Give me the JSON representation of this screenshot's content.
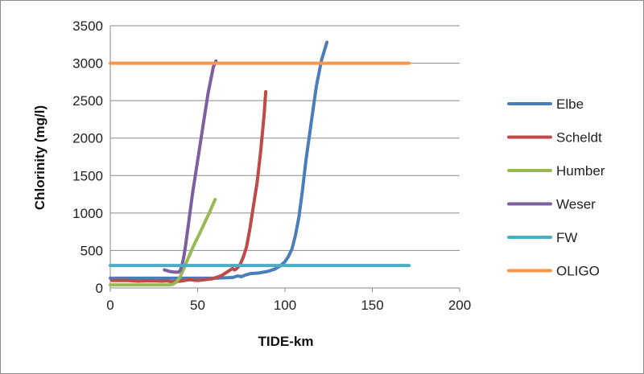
{
  "chart_data": {
    "type": "line",
    "title": "",
    "xlabel": "TIDE-km",
    "ylabel": "Chlorinity (mg/l)",
    "xlim": [
      0,
      200
    ],
    "ylim": [
      0,
      3500
    ],
    "xticks": [
      0,
      50,
      100,
      150,
      200
    ],
    "yticks": [
      0,
      500,
      1000,
      1500,
      2000,
      2500,
      3000,
      3500
    ],
    "grid": "horizontal major gridlines",
    "legend_position": "right",
    "series": [
      {
        "name": "Elbe",
        "color": "#4a7ebb",
        "x": [
          0,
          20,
          40,
          60,
          70,
          73,
          75,
          77,
          80,
          85,
          90,
          94,
          97,
          100,
          102,
          104,
          106,
          108,
          110,
          112,
          115,
          118,
          121,
          124
        ],
        "y": [
          130,
          130,
          130,
          130,
          140,
          160,
          150,
          170,
          190,
          200,
          220,
          250,
          290,
          350,
          420,
          520,
          700,
          950,
          1300,
          1700,
          2200,
          2700,
          3050,
          3280
        ]
      },
      {
        "name": "Scheldt",
        "color": "#be4b48",
        "x": [
          1,
          10,
          16,
          20,
          25,
          30,
          32,
          35,
          40,
          45,
          50,
          54,
          58,
          62,
          64,
          66,
          68,
          70,
          71,
          72,
          74,
          76,
          78,
          80,
          82,
          84,
          86,
          88,
          89
        ],
        "y": [
          100,
          100,
          90,
          95,
          95,
          90,
          95,
          85,
          90,
          110,
          100,
          110,
          120,
          150,
          170,
          200,
          230,
          260,
          240,
          250,
          300,
          400,
          550,
          800,
          1100,
          1400,
          1800,
          2300,
          2620
        ]
      },
      {
        "name": "Humber",
        "color": "#98b954",
        "x": [
          0,
          10,
          34,
          36,
          38,
          40,
          42,
          45,
          48,
          51,
          54,
          57,
          60
        ],
        "y": [
          40,
          40,
          40,
          50,
          80,
          150,
          250,
          420,
          580,
          720,
          870,
          1020,
          1180
        ]
      },
      {
        "name": "Weser",
        "color": "#7d5fa0",
        "x": [
          31,
          34,
          37,
          39,
          40,
          41,
          42,
          43,
          45,
          47,
          50,
          53,
          56,
          59,
          60.5
        ],
        "y": [
          240,
          220,
          210,
          210,
          230,
          300,
          400,
          550,
          900,
          1250,
          1700,
          2150,
          2600,
          2950,
          3030
        ]
      },
      {
        "name": "FW",
        "color": "#4bacc6",
        "x": [
          0,
          171
        ],
        "y": [
          300,
          300
        ]
      },
      {
        "name": "OLIGO",
        "color": "#f79646",
        "x": [
          0,
          171
        ],
        "y": [
          3000,
          3000
        ]
      }
    ]
  }
}
